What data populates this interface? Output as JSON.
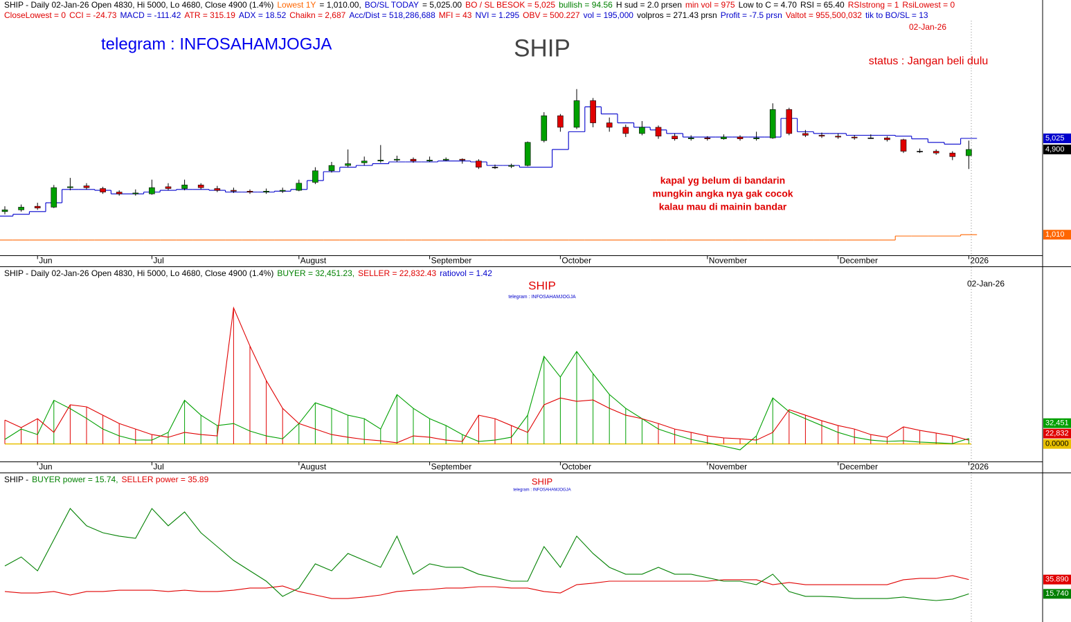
{
  "chart_data": [
    {
      "type": "candlestick",
      "header": [
        [
          {
            "text": "SHIP - Daily 02-Jan-26 Open 4830, Hi 5000, Lo 4680, Close 4900 (1.4%)",
            "color": "#000000"
          },
          {
            "text": "Lowest 1Y",
            "color": "#ff6600"
          },
          {
            "text": "= 1,010.00,",
            "color": "#000000"
          },
          {
            "text": "BO/SL TODAY",
            "color": "#0000cc"
          },
          {
            "text": "= 5,025.00",
            "color": "#000000"
          },
          {
            "text": "BO / SL BESOK = 5,025",
            "color": "#e00000"
          },
          {
            "text": "bullish = 94.56",
            "color": "#008000"
          },
          {
            "text": "H sud = 2.0 prsen",
            "color": "#000000"
          },
          {
            "text": "min vol = 975",
            "color": "#e00000"
          },
          {
            "text": "Low to C = 4.70",
            "color": "#000000"
          },
          {
            "text": "RSI = 65.40",
            "color": "#000000"
          },
          {
            "text": "RSIstrong = 1",
            "color": "#e00000"
          },
          {
            "text": "RsiLowest = 0",
            "color": "#e00000"
          }
        ],
        [
          {
            "text": "CloseLowest = 0",
            "color": "#e00000"
          },
          {
            "text": "CCI = -24.73",
            "color": "#e00000"
          },
          {
            "text": "MACD = -111.42",
            "color": "#0000cc"
          },
          {
            "text": "ATR = 315.19",
            "color": "#e00000"
          },
          {
            "text": "ADX = 18.52",
            "color": "#0000cc"
          },
          {
            "text": "Chaikn = 2,687",
            "color": "#e00000"
          },
          {
            "text": "Acc/Dist = 518,286,688",
            "color": "#0000cc"
          },
          {
            "text": "MFI = 43",
            "color": "#e00000"
          },
          {
            "text": "NVI = 1.295",
            "color": "#0000cc"
          },
          {
            "text": "OBV = 500.227",
            "color": "#e00000"
          },
          {
            "text": "vol = 195,000",
            "color": "#0000cc"
          },
          {
            "text": "volpros = 271.43 prsn",
            "color": "#000000"
          },
          {
            "text": "Profit = -7.5 prsn",
            "color": "#0000cc"
          },
          {
            "text": "Valtot = 955,500,032",
            "color": "#e00000"
          },
          {
            "text": "tik to BO/SL = 13",
            "color": "#0000cc"
          }
        ]
      ],
      "date_label": "02-Jan-26",
      "watermark": "telegram : INFOSAHAMJOGJA",
      "title": "SHIP",
      "status": "status : Jangan beli dulu",
      "annotation": [
        "kapal yg belum di bandarin",
        "mungkin angka nya gak cocok",
        "kalau mau di mainin bandar"
      ],
      "categories": [
        null,
        null,
        "Jun",
        null,
        null,
        null,
        null,
        null,
        null,
        "Jul",
        null,
        null,
        null,
        null,
        null,
        null,
        null,
        null,
        "August",
        null,
        null,
        null,
        null,
        null,
        null,
        null,
        "September",
        null,
        null,
        null,
        null,
        null,
        null,
        null,
        "October",
        null,
        null,
        null,
        null,
        null,
        null,
        null,
        null,
        "November",
        null,
        null,
        null,
        null,
        null,
        null,
        null,
        "December",
        null,
        null,
        null,
        null,
        null,
        null,
        null,
        "2026"
      ],
      "open": [
        4200,
        4220,
        4260,
        4250,
        4470,
        4490,
        4460,
        4420,
        4400,
        4400,
        4480,
        4460,
        4500,
        4460,
        4440,
        4430,
        4420,
        4430,
        4440,
        4530,
        4660,
        4720,
        4750,
        4770,
        4780,
        4790,
        4770,
        4780,
        4790,
        4770,
        4700,
        4710,
        4720,
        5000,
        5280,
        5150,
        5450,
        5200,
        5150,
        5080,
        5150,
        5050,
        5020,
        5030,
        5020,
        5040,
        5020,
        5030,
        5350,
        5080,
        5060,
        5050,
        5040,
        5030,
        5030,
        5010,
        4880,
        4880,
        4860,
        4830
      ],
      "high": [
        4260,
        4280,
        4300,
        4500,
        4580,
        4520,
        4480,
        4440,
        4450,
        4560,
        4520,
        4560,
        4520,
        4490,
        4470,
        4450,
        4460,
        4470,
        4560,
        4700,
        4760,
        4900,
        4820,
        4950,
        4830,
        4810,
        4820,
        4810,
        4800,
        4790,
        4730,
        4740,
        4990,
        5320,
        5300,
        5580,
        5480,
        5260,
        5180,
        5220,
        5170,
        5080,
        5060,
        5050,
        5070,
        5060,
        5100,
        5420,
        5370,
        5120,
        5090,
        5080,
        5060,
        5070,
        5050,
        5020,
        4910,
        4900,
        4880,
        5000
      ],
      "low": [
        4170,
        4200,
        4220,
        4240,
        4440,
        4450,
        4400,
        4380,
        4380,
        4390,
        4440,
        4440,
        4450,
        4420,
        4410,
        4400,
        4400,
        4410,
        4430,
        4510,
        4640,
        4700,
        4720,
        4750,
        4760,
        4750,
        4760,
        4770,
        4740,
        4680,
        4680,
        4690,
        4710,
        4980,
        5100,
        5130,
        5150,
        5100,
        5040,
        5060,
        5020,
        5000,
        5000,
        5000,
        5010,
        5000,
        5000,
        5020,
        5060,
        5040,
        5030,
        5020,
        5010,
        5020,
        4990,
        4860,
        4860,
        4840,
        4780,
        4680
      ],
      "close": [
        4220,
        4250,
        4240,
        4470,
        4480,
        4470,
        4420,
        4400,
        4410,
        4470,
        4460,
        4500,
        4470,
        4440,
        4430,
        4420,
        4430,
        4440,
        4520,
        4660,
        4720,
        4740,
        4770,
        4780,
        4790,
        4770,
        4780,
        4790,
        4780,
        4700,
        4700,
        4720,
        4980,
        5280,
        5150,
        5450,
        5200,
        5150,
        5080,
        5150,
        5050,
        5020,
        5030,
        5020,
        5040,
        5020,
        5030,
        5350,
        5080,
        5060,
        5050,
        5040,
        5030,
        5030,
        5010,
        4880,
        4880,
        4860,
        4820,
        4900
      ],
      "up_color": "#00a000",
      "down_color": "#e00000",
      "close_tag": "4,900",
      "close_tag_color": "#000000",
      "lines": [
        {
          "color": "#0000cc",
          "tag": "5,025",
          "values": [
            4150,
            4170,
            4200,
            4300,
            4450,
            4450,
            4440,
            4400,
            4400,
            4420,
            4440,
            4450,
            4450,
            4440,
            4420,
            4420,
            4420,
            4430,
            4450,
            4550,
            4650,
            4700,
            4720,
            4740,
            4760,
            4760,
            4760,
            4770,
            4770,
            4760,
            4720,
            4720,
            4700,
            4700,
            4900,
            5100,
            5380,
            5300,
            5200,
            5150,
            5120,
            5080,
            5040,
            5040,
            5040,
            5040,
            5040,
            5040,
            5250,
            5100,
            5080,
            5080,
            5060,
            5060,
            5060,
            5050,
            5020,
            4980,
            4960,
            5025
          ]
        },
        {
          "color": "#ff6600",
          "tag": "1,010",
          "values": [
            3880,
            3880,
            3880,
            3880,
            3880,
            3880,
            3880,
            3880,
            3880,
            3880,
            3880,
            3880,
            3880,
            3880,
            3880,
            3880,
            3880,
            3880,
            3880,
            3880,
            3880,
            3880,
            3880,
            3880,
            3880,
            3880,
            3880,
            3880,
            3880,
            3880,
            3880,
            3880,
            3880,
            3880,
            3880,
            3880,
            3880,
            3880,
            3880,
            3880,
            3880,
            3880,
            3880,
            3880,
            3880,
            3880,
            3880,
            3880,
            3880,
            3880,
            3880,
            3880,
            3880,
            3880,
            3880,
            3925,
            3925,
            3925,
            3925,
            3940
          ]
        }
      ],
      "ylim": [
        3700,
        6350
      ]
    },
    {
      "type": "oscillator",
      "header": [
        [
          {
            "text": "SHIP - Daily 02-Jan-26 Open 4830, Hi 5000, Lo 4680, Close 4900 (1.4%)",
            "color": "#000000"
          },
          {
            "text": "BUYER = 32,451.23,",
            "color": "#008000"
          },
          {
            "text": "SELLER = 22,832.43",
            "color": "#e00000"
          },
          {
            "text": "ratiovol = 1.42",
            "color": "#0000cc"
          }
        ]
      ],
      "title": "SHIP",
      "subtitle": "telegram : INFOSAHAMJOGJA",
      "date_label": "02-Jan-26",
      "categories": [
        null,
        null,
        "Jun",
        null,
        null,
        null,
        null,
        null,
        null,
        "Jul",
        null,
        null,
        null,
        null,
        null,
        null,
        null,
        null,
        "August",
        null,
        null,
        null,
        null,
        null,
        null,
        null,
        "September",
        null,
        null,
        null,
        null,
        null,
        null,
        null,
        "October",
        null,
        null,
        null,
        null,
        null,
        null,
        null,
        null,
        "November",
        null,
        null,
        null,
        null,
        null,
        null,
        null,
        "December",
        null,
        null,
        null,
        null,
        null,
        null,
        null,
        "2026"
      ],
      "series": [
        {
          "color": "#00a000",
          "tag": "32,451",
          "values": [
            27000,
            89000,
            56000,
            261000,
            211000,
            153000,
            89000,
            48000,
            23000,
            23000,
            69000,
            261000,
            172000,
            110000,
            122000,
            77000,
            48000,
            31000,
            122000,
            246000,
            213000,
            172000,
            151000,
            89000,
            295000,
            213000,
            151000,
            110000,
            56000,
            15000,
            23000,
            40000,
            172000,
            524000,
            400000,
            553000,
            420000,
            296000,
            213000,
            151000,
            89000,
            56000,
            27000,
            7000,
            -14000,
            -35000,
            48000,
            275000,
            193000,
            151000,
            110000,
            69000,
            40000,
            23000,
            15000,
            19000,
            11000,
            7000,
            2000,
            32451.23
          ]
        },
        {
          "color": "#e00000",
          "tag": "22,832",
          "values": [
            143000,
            98000,
            151000,
            69000,
            234000,
            222000,
            172000,
            122000,
            89000,
            56000,
            40000,
            69000,
            56000,
            48000,
            814000,
            586000,
            379000,
            213000,
            122000,
            89000,
            56000,
            40000,
            27000,
            19000,
            7000,
            48000,
            40000,
            23000,
            15000,
            172000,
            151000,
            110000,
            69000,
            234000,
            275000,
            255000,
            263000,
            213000,
            172000,
            151000,
            122000,
            89000,
            69000,
            48000,
            36000,
            31000,
            23000,
            69000,
            205000,
            172000,
            139000,
            110000,
            89000,
            56000,
            40000,
            102000,
            81000,
            65000,
            48000,
            22832.43
          ]
        }
      ],
      "zero_color": "#e8c000",
      "ylim": [
        -76000,
        1000000
      ],
      "yticks": [
        {
          "value": 0,
          "label": "0.0000"
        }
      ]
    },
    {
      "type": "line",
      "header": [
        [
          {
            "text": "SHIP -",
            "color": "#000000"
          },
          {
            "text": "BUYER power = 15.74,",
            "color": "#008000"
          },
          {
            "text": "SELLER power = 35.89",
            "color": "#e00000"
          }
        ]
      ],
      "title": "SHIP",
      "subtitle": "telegram : INFOSAHAMJOGJA",
      "series": [
        {
          "color": "#e00000",
          "tag": "35.890",
          "values": [
            19,
            17,
            17,
            19,
            14.1,
            19,
            19,
            20.9,
            20.9,
            20.9,
            19,
            20.9,
            19,
            19,
            20.9,
            23.9,
            23.9,
            26.8,
            19,
            14.1,
            9.2,
            9.2,
            11.2,
            14.1,
            19,
            20.9,
            21.9,
            23.9,
            23.9,
            25.8,
            25.8,
            23.9,
            23.9,
            19,
            17,
            28.7,
            30.7,
            33.6,
            33.6,
            33.6,
            33.6,
            33.6,
            33.6,
            33.6,
            35.6,
            35.6,
            35.6,
            28.7,
            31.7,
            28.7,
            28.7,
            28.7,
            28.7,
            28.7,
            28.7,
            35.6,
            37.5,
            37.5,
            41.4,
            35.89
          ]
        },
        {
          "color": "#008000",
          "tag": "15.740",
          "values": [
            55,
            67.7,
            48.2,
            92.1,
            135.9,
            111.6,
            101.8,
            97,
            94,
            135.9,
            111.6,
            131.1,
            101.8,
            82.3,
            62.8,
            48.2,
            33.6,
            12.2,
            23.9,
            58,
            48.2,
            72.6,
            62.8,
            53.1,
            97,
            43.4,
            58,
            53.1,
            53.1,
            43.4,
            38.5,
            33.6,
            33.6,
            82.3,
            53.1,
            97,
            72.6,
            53.1,
            43.4,
            43.4,
            53.1,
            43.4,
            43.4,
            38.5,
            33.6,
            33.6,
            28.7,
            43.4,
            19,
            12.2,
            12.2,
            11.2,
            9.2,
            9.2,
            9.2,
            11.2,
            8.3,
            6.3,
            8.3,
            15.74
          ]
        }
      ],
      "ylim": [
        -20,
        170
      ]
    }
  ]
}
